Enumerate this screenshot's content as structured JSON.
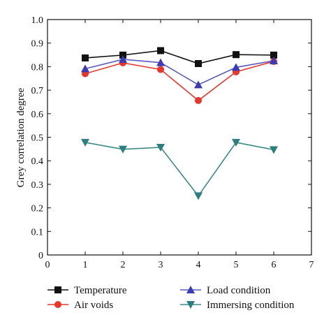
{
  "chart_data": {
    "type": "line",
    "title": "",
    "xlabel": "",
    "ylabel": "Grey correlation degree",
    "xlim": [
      0,
      7
    ],
    "ylim": [
      0,
      1.0
    ],
    "xticks": [
      "0",
      "1",
      "2",
      "3",
      "4",
      "5",
      "6",
      "7"
    ],
    "yticks": [
      "0",
      "0.1",
      "0.2",
      "0.3",
      "0.4",
      "0.5",
      "0.6",
      "0.7",
      "0.8",
      "0.9",
      "1.0"
    ],
    "grid": false,
    "legend_position": "bottom",
    "x": [
      1,
      2,
      3,
      4,
      5,
      6
    ],
    "series": [
      {
        "name": "Temperature",
        "marker": "square",
        "color": "#111111",
        "line_color": "#111111",
        "values": [
          0.837,
          0.849,
          0.868,
          0.813,
          0.851,
          0.849
        ]
      },
      {
        "name": "Air voids",
        "marker": "circle",
        "color": "#e8362a",
        "line_color": "#e8362a",
        "values": [
          0.77,
          0.816,
          0.788,
          0.656,
          0.778,
          0.822
        ]
      },
      {
        "name": "Load condition",
        "marker": "triangle-up",
        "color": "#3b3bb5",
        "line_color": "#5a5ac0",
        "values": [
          0.791,
          0.831,
          0.817,
          0.723,
          0.797,
          0.825
        ]
      },
      {
        "name": "Immersing condition",
        "marker": "triangle-down",
        "color": "#2d7f7d",
        "line_color": "#3a8a88",
        "values": [
          0.478,
          0.449,
          0.457,
          0.251,
          0.478,
          0.447
        ]
      }
    ]
  }
}
